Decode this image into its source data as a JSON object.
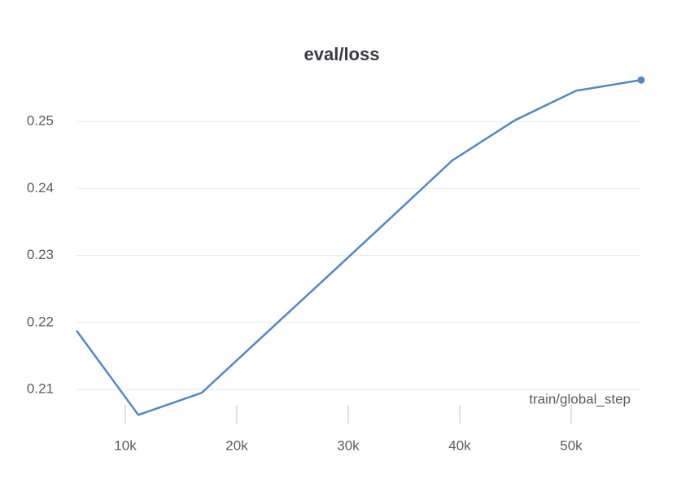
{
  "chart_data": {
    "type": "line",
    "title": "eval/loss",
    "x_label": "train/global_step",
    "x": [
      5620,
      11170,
      16860,
      22500,
      28100,
      33800,
      39340,
      44960,
      50440,
      56280
    ],
    "series": [
      {
        "name": "eval/loss",
        "color": "#5387c6",
        "values": [
          0.2188,
          0.2062,
          0.2095,
          0.2182,
          0.2268,
          0.2356,
          0.2442,
          0.2502,
          0.2546,
          0.2562
        ]
      }
    ],
    "xlim": [
      5620,
      56280
    ],
    "ylim": [
      0.2049,
      0.2572
    ],
    "xticks": [
      {
        "value": 10000,
        "label": "10k"
      },
      {
        "value": 20000,
        "label": "20k"
      },
      {
        "value": 30000,
        "label": "30k"
      },
      {
        "value": 40000,
        "label": "40k"
      },
      {
        "value": 50000,
        "label": "50k"
      }
    ],
    "yticks": [
      0.21,
      0.22,
      0.23,
      0.24,
      0.25
    ],
    "grid": true
  }
}
